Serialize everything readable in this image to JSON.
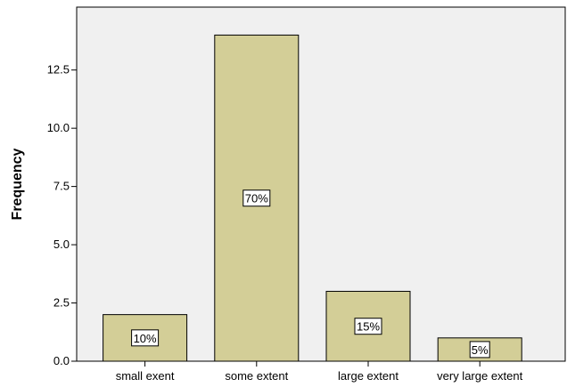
{
  "chart_data": {
    "type": "bar",
    "categories": [
      "small exent",
      "some extent",
      "large extent",
      "very large extent"
    ],
    "values": [
      2,
      14,
      3,
      1
    ],
    "data_labels": [
      "10%",
      "70%",
      "15%",
      "5%"
    ],
    "ylabel": "Frequency",
    "xlabel": "",
    "ylim": [
      0,
      15.2
    ],
    "yticks": [
      0.0,
      2.5,
      5.0,
      7.5,
      10.0,
      12.5
    ],
    "ytick_labels": [
      "0.0",
      "2.5",
      "5.0",
      "7.5",
      "10.0",
      "12.5"
    ],
    "grid": false,
    "legend": "none",
    "colors": {
      "plot_background": "#f0f0f0",
      "bar_fill": "#d3ce97",
      "bar_stroke": "#000000",
      "label_box": "#ffffff"
    }
  }
}
